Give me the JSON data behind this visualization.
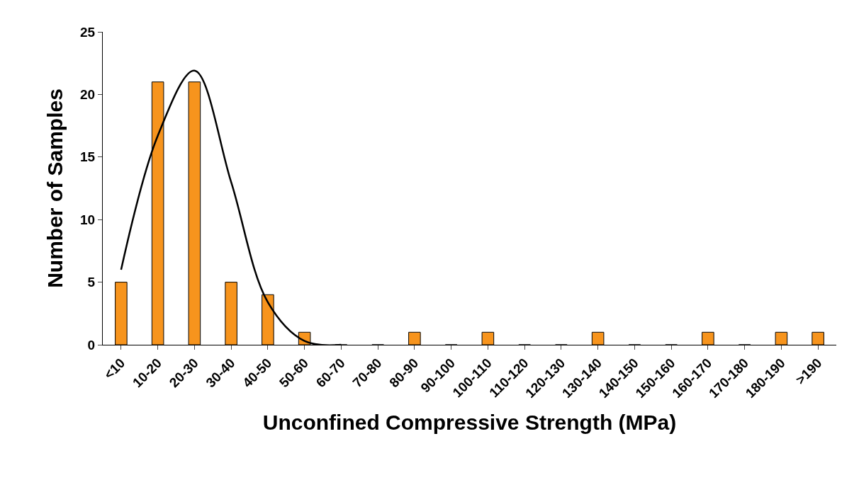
{
  "chart_data": {
    "type": "bar",
    "xlabel": "Unconfined Compressive Strength (MPa)",
    "ylabel": "Number of Samples",
    "categories": [
      "<10",
      "10-20",
      "20-30",
      "30-40",
      "40-50",
      "50-60",
      "60-70",
      "70-80",
      "80-90",
      "90-100",
      "100-110",
      "110-120",
      "120-130",
      "130-140",
      "140-150",
      "150-160",
      "160-170",
      "170-180",
      "180-190",
      ">190"
    ],
    "series": [
      {
        "color": "#f7941d",
        "values": [
          5,
          21,
          21,
          5,
          4,
          1,
          0,
          0,
          1,
          0,
          1,
          0,
          0,
          1,
          0,
          0,
          1,
          0,
          1,
          1
        ]
      },
      {
        "type": "line",
        "color": "#000000",
        "values": [
          6.0,
          16.7,
          21.9,
          13.0,
          3.4,
          0.3,
          0.0,
          null,
          null,
          null,
          null,
          null,
          null,
          null,
          null,
          null,
          null,
          null,
          null,
          null
        ]
      }
    ],
    "ylim": [
      0,
      25
    ],
    "yticks": [
      0,
      5,
      10,
      15,
      20,
      25
    ],
    "legend": false,
    "marker": "none",
    "line_style": "solid"
  }
}
